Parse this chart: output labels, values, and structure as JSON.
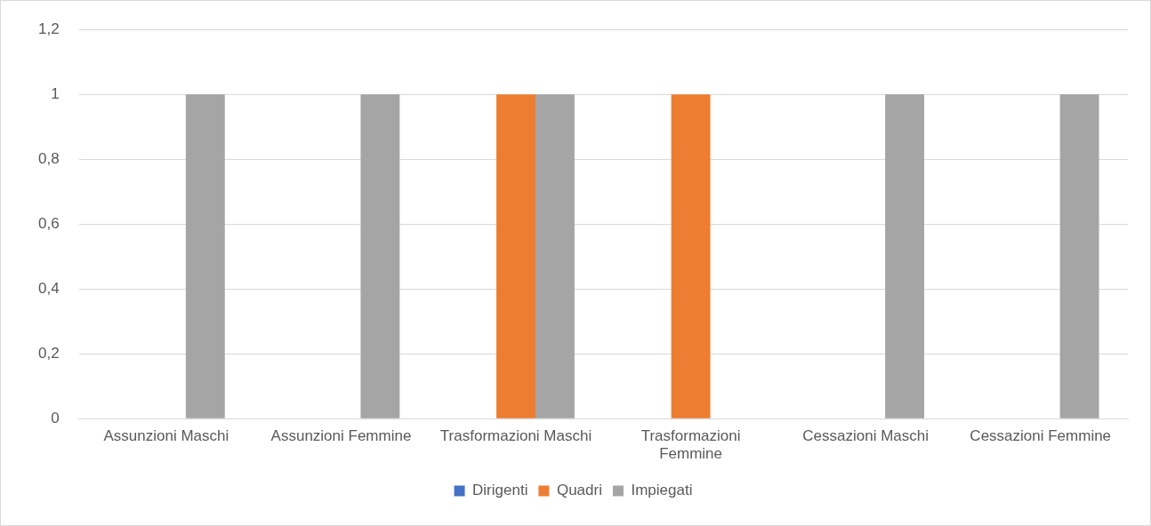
{
  "chart_data": {
    "type": "bar",
    "categories": [
      "Assunzioni Maschi",
      "Assunzioni Femmine",
      "Trasformazioni Maschi",
      "Trasformazioni Femmine",
      "Cessazioni Maschi",
      "Cessazioni Femmine"
    ],
    "series": [
      {
        "name": "Dirigenti",
        "color": "#4472c4",
        "values": [
          0,
          0,
          0,
          0,
          0,
          0
        ]
      },
      {
        "name": "Quadri",
        "color": "#ed7d31",
        "values": [
          0,
          0,
          1,
          1,
          0,
          0
        ]
      },
      {
        "name": "Impiegati",
        "color": "#a5a5a5",
        "values": [
          1,
          1,
          1,
          0,
          1,
          1
        ]
      }
    ],
    "ylim": [
      0,
      1.2
    ],
    "yticks": [
      0,
      {
        "value": 0.2,
        "label": "0,2"
      },
      {
        "value": 0.4,
        "label": "0,4"
      },
      {
        "value": 0.6,
        "label": "0,6"
      },
      {
        "value": 0.8,
        "label": "0,8"
      },
      1,
      {
        "value": 1.2,
        "label": "1,2"
      }
    ],
    "grid": "y",
    "legend": "bottom"
  }
}
